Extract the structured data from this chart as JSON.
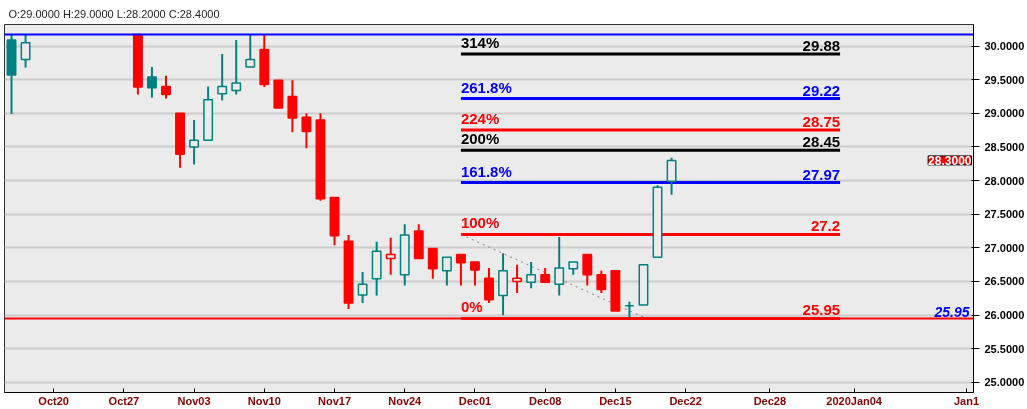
{
  "chart_data": {
    "type": "candlestick",
    "annotations": [
      "O:29.0000  H:29.0000  L:28.2000  C:28.4000",
      "28.3000"
    ],
    "categories": [
      null,
      null,
      null,
      "Oct20",
      null,
      null,
      null,
      null,
      "Oct27",
      null,
      null,
      null,
      null,
      "Nov03",
      null,
      null,
      null,
      null,
      "Nov10",
      null,
      null,
      null,
      null,
      "Nov17",
      null,
      null,
      null,
      null,
      "Nov24",
      null,
      null,
      null,
      null,
      "Dec01",
      null,
      null,
      null,
      null,
      "Dec08",
      null,
      null,
      null,
      null,
      "Dec15",
      null,
      null,
      null,
      null,
      "Dec22",
      null,
      null,
      null,
      null,
      null,
      "Dec28",
      null,
      null,
      null,
      null,
      null,
      "2020Jan04",
      null,
      null,
      null,
      null,
      null,
      null,
      null,
      "Jan1"
    ],
    "ohlc": [
      [
        30.09,
        30.17,
        28.99,
        29.57
      ],
      [
        29.8,
        30.17,
        29.68,
        30.05
      ],
      null,
      null,
      null,
      null,
      null,
      null,
      null,
      [
        30.17,
        30.17,
        29.28,
        29.39
      ],
      [
        29.54,
        29.69,
        29.23,
        29.38
      ],
      [
        29.4,
        29.56,
        29.22,
        29.28
      ],
      [
        29.0,
        29.0,
        28.19,
        28.39
      ],
      [
        28.5,
        28.9,
        28.24,
        28.6
      ],
      [
        28.6,
        29.4,
        28.6,
        29.2
      ],
      [
        29.29,
        29.88,
        29.19,
        29.4
      ],
      [
        29.34,
        30.09,
        29.28,
        29.45
      ],
      [
        29.69,
        30.17,
        29.69,
        29.8
      ],
      [
        29.95,
        30.17,
        29.39,
        29.43
      ],
      [
        29.49,
        29.49,
        29.08,
        29.08
      ],
      [
        29.25,
        29.49,
        28.72,
        28.93
      ],
      [
        28.94,
        29.0,
        28.48,
        28.73
      ],
      [
        28.9,
        29.0,
        27.7,
        27.73
      ],
      [
        27.75,
        27.75,
        27.04,
        27.18
      ],
      [
        27.1,
        27.19,
        26.09,
        26.18
      ],
      [
        26.3,
        26.64,
        26.18,
        26.46
      ],
      [
        26.54,
        27.09,
        26.29,
        26.95
      ],
      [
        26.84,
        27.15,
        26.6,
        26.9
      ],
      [
        26.6,
        27.35,
        26.44,
        27.19
      ],
      [
        27.25,
        27.35,
        26.84,
        26.84
      ],
      [
        26.99,
        26.99,
        26.54,
        26.69
      ],
      [
        26.66,
        26.86,
        26.44,
        26.86
      ],
      [
        26.9,
        26.9,
        26.44,
        26.78
      ],
      [
        26.79,
        26.79,
        26.44,
        26.67
      ],
      [
        26.55,
        26.7,
        26.18,
        26.23
      ],
      [
        26.29,
        26.92,
        26.0,
        26.66
      ],
      [
        26.5,
        26.75,
        26.33,
        26.55
      ],
      [
        26.49,
        26.79,
        26.4,
        26.6
      ],
      [
        26.6,
        26.7,
        26.49,
        26.49
      ],
      [
        26.46,
        27.16,
        26.29,
        26.7
      ],
      [
        26.69,
        26.79,
        26.6,
        26.79
      ],
      [
        26.9,
        26.9,
        26.44,
        26.6
      ],
      [
        26.6,
        26.66,
        26.33,
        26.38
      ],
      [
        26.66,
        26.66,
        26.06,
        26.06
      ],
      [
        26.14,
        26.2,
        25.97,
        26.14
      ],
      [
        26.15,
        26.75,
        26.15,
        26.75
      ],
      [
        26.86,
        27.93,
        26.86,
        27.9
      ],
      [
        27.99,
        28.34,
        27.79,
        28.3
      ],
      null,
      null,
      null,
      null,
      null,
      null,
      null,
      null,
      null,
      null,
      null,
      null,
      null,
      null,
      null,
      null,
      null,
      null,
      null,
      null,
      null
    ],
    "colors": [
      "#008080",
      "#008080",
      null,
      null,
      null,
      null,
      null,
      null,
      null,
      "#ff0000",
      "#008080",
      "#ff0000",
      "#ff0000",
      "#008080",
      "#008080",
      "#008080",
      "#008080",
      "#008080",
      "#ff0000",
      "#ff0000",
      "#ff0000",
      "#ff0000",
      "#ff0000",
      "#ff0000",
      "#ff0000",
      "#008080",
      "#008080",
      "#ff0000",
      "#008080",
      "#ff0000",
      "#ff0000",
      "#008080",
      "#ff0000",
      "#ff0000",
      "#ff0000",
      "#008080",
      "#ff0000",
      "#008080",
      "#ff0000",
      "#008080",
      "#008080",
      "#ff0000",
      "#ff0000",
      "#ff0000",
      "#008080",
      "#008080",
      "#008080",
      "#008080",
      null,
      null,
      null,
      null,
      null,
      null,
      null,
      null,
      null,
      null,
      null,
      null,
      null,
      null,
      null,
      null,
      null,
      null,
      null,
      null,
      null
    ],
    "ylim": [
      24.85,
      30.32
    ],
    "yticks": [
      {
        "value": 25,
        "label": "25.0000"
      },
      {
        "value": 25.5,
        "label": "25.5000"
      },
      {
        "value": 26,
        "label": "26.0000"
      },
      {
        "value": 26.5,
        "label": "26.5000"
      },
      {
        "value": 27,
        "label": "27.0000"
      },
      {
        "value": 27.5,
        "label": "27.5000"
      },
      {
        "value": 28,
        "label": "28.0000"
      },
      {
        "value": 28.5,
        "label": "28.5000"
      },
      {
        "value": 29,
        "label": "29.0000"
      },
      {
        "value": 29.5,
        "label": "29.5000"
      },
      {
        "value": 30,
        "label": "30.0000"
      }
    ],
    "grid": "y",
    "series": [
      {
        "type": "line",
        "name": "314%",
        "color": "#000000",
        "values": [
          null,
          null,
          null,
          null,
          null,
          null,
          null,
          null,
          null,
          null,
          null,
          null,
          null,
          null,
          null,
          null,
          null,
          null,
          null,
          null,
          null,
          null,
          null,
          null,
          null,
          null,
          null,
          null,
          null,
          null,
          null,
          null,
          29.88,
          null,
          null,
          null,
          null,
          null,
          null,
          null,
          null,
          null,
          null,
          null,
          null,
          null,
          null,
          null,
          null,
          null,
          null,
          null,
          null,
          null,
          null,
          null,
          null,
          null,
          null,
          29.88,
          null,
          null,
          null,
          null,
          null,
          null,
          null,
          null,
          null
        ],
        "value_labels": [
          null,
          null,
          null,
          null,
          null,
          null,
          null,
          null,
          null,
          null,
          null,
          null,
          null,
          null,
          null,
          null,
          null,
          null,
          null,
          null,
          null,
          null,
          null,
          null,
          null,
          null,
          null,
          null,
          null,
          null,
          null,
          null,
          null,
          null,
          null,
          null,
          null,
          null,
          null,
          null,
          null,
          null,
          null,
          null,
          null,
          null,
          null,
          null,
          null,
          null,
          null,
          null,
          null,
          null,
          null,
          null,
          null,
          null,
          null,
          "29.88",
          null,
          null,
          null,
          null,
          null,
          null,
          null,
          null,
          null
        ]
      },
      {
        "type": "line",
        "name": "261.8%",
        "color": "#0000ff",
        "values": [
          null,
          null,
          null,
          null,
          null,
          null,
          null,
          null,
          null,
          null,
          null,
          null,
          null,
          null,
          null,
          null,
          null,
          null,
          null,
          null,
          null,
          null,
          null,
          null,
          null,
          null,
          null,
          null,
          null,
          null,
          null,
          null,
          29.22,
          null,
          null,
          null,
          null,
          null,
          null,
          null,
          null,
          null,
          null,
          null,
          null,
          null,
          null,
          null,
          null,
          null,
          null,
          null,
          null,
          null,
          null,
          null,
          null,
          null,
          null,
          29.22,
          null,
          null,
          null,
          null,
          null,
          null,
          null,
          null,
          null
        ],
        "value_labels": [
          null,
          null,
          null,
          null,
          null,
          null,
          null,
          null,
          null,
          null,
          null,
          null,
          null,
          null,
          null,
          null,
          null,
          null,
          null,
          null,
          null,
          null,
          null,
          null,
          null,
          null,
          null,
          null,
          null,
          null,
          null,
          null,
          null,
          null,
          null,
          null,
          null,
          null,
          null,
          null,
          null,
          null,
          null,
          null,
          null,
          null,
          null,
          null,
          null,
          null,
          null,
          null,
          null,
          null,
          null,
          null,
          null,
          null,
          null,
          "29.22",
          null,
          null,
          null,
          null,
          null,
          null,
          null,
          null,
          null
        ]
      },
      {
        "type": "line",
        "name": "224%",
        "color": "#ff0000",
        "values": [
          null,
          null,
          null,
          null,
          null,
          null,
          null,
          null,
          null,
          null,
          null,
          null,
          null,
          null,
          null,
          null,
          null,
          null,
          null,
          null,
          null,
          null,
          null,
          null,
          null,
          null,
          null,
          null,
          null,
          null,
          null,
          null,
          28.75,
          null,
          null,
          null,
          null,
          null,
          null,
          null,
          null,
          null,
          null,
          null,
          null,
          null,
          null,
          null,
          null,
          null,
          null,
          null,
          null,
          null,
          null,
          null,
          null,
          null,
          null,
          28.75,
          null,
          null,
          null,
          null,
          null,
          null,
          null,
          null,
          null
        ],
        "value_labels": [
          null,
          null,
          null,
          null,
          null,
          null,
          null,
          null,
          null,
          null,
          null,
          null,
          null,
          null,
          null,
          null,
          null,
          null,
          null,
          null,
          null,
          null,
          null,
          null,
          null,
          null,
          null,
          null,
          null,
          null,
          null,
          null,
          null,
          null,
          null,
          null,
          null,
          null,
          null,
          null,
          null,
          null,
          null,
          null,
          null,
          null,
          null,
          null,
          null,
          null,
          null,
          null,
          null,
          null,
          null,
          null,
          null,
          null,
          null,
          "28.75",
          null,
          null,
          null,
          null,
          null,
          null,
          null,
          null,
          null
        ]
      },
      {
        "type": "line",
        "name": "200%",
        "color": "#000000",
        "values": [
          null,
          null,
          null,
          null,
          null,
          null,
          null,
          null,
          null,
          null,
          null,
          null,
          null,
          null,
          null,
          null,
          null,
          null,
          null,
          null,
          null,
          null,
          null,
          null,
          null,
          null,
          null,
          null,
          null,
          null,
          null,
          null,
          28.45,
          null,
          null,
          null,
          null,
          null,
          null,
          null,
          null,
          null,
          null,
          null,
          null,
          null,
          null,
          null,
          null,
          null,
          null,
          null,
          null,
          null,
          null,
          null,
          null,
          null,
          null,
          28.45,
          null,
          null,
          null,
          null,
          null,
          null,
          null,
          null,
          null
        ],
        "value_labels": [
          null,
          null,
          null,
          null,
          null,
          null,
          null,
          null,
          null,
          null,
          null,
          null,
          null,
          null,
          null,
          null,
          null,
          null,
          null,
          null,
          null,
          null,
          null,
          null,
          null,
          null,
          null,
          null,
          null,
          null,
          null,
          null,
          null,
          null,
          null,
          null,
          null,
          null,
          null,
          null,
          null,
          null,
          null,
          null,
          null,
          null,
          null,
          null,
          null,
          null,
          null,
          null,
          null,
          null,
          null,
          null,
          null,
          null,
          null,
          "28.45",
          null,
          null,
          null,
          null,
          null,
          null,
          null,
          null,
          null
        ]
      },
      {
        "type": "line",
        "name": "161.8%",
        "color": "#0000ff",
        "values": [
          null,
          null,
          null,
          null,
          null,
          null,
          null,
          null,
          null,
          null,
          null,
          null,
          null,
          null,
          null,
          null,
          null,
          null,
          null,
          null,
          null,
          null,
          null,
          null,
          null,
          null,
          null,
          null,
          null,
          null,
          null,
          null,
          27.97,
          null,
          null,
          null,
          null,
          null,
          null,
          null,
          null,
          null,
          null,
          null,
          null,
          null,
          null,
          null,
          null,
          null,
          null,
          null,
          null,
          null,
          null,
          null,
          null,
          null,
          null,
          27.97,
          null,
          null,
          null,
          null,
          null,
          null,
          null,
          null,
          null
        ],
        "value_labels": [
          null,
          null,
          null,
          null,
          null,
          null,
          null,
          null,
          null,
          null,
          null,
          null,
          null,
          null,
          null,
          null,
          null,
          null,
          null,
          null,
          null,
          null,
          null,
          null,
          null,
          null,
          null,
          null,
          null,
          null,
          null,
          null,
          null,
          null,
          null,
          null,
          null,
          null,
          null,
          null,
          null,
          null,
          null,
          null,
          null,
          null,
          null,
          null,
          null,
          null,
          null,
          null,
          null,
          null,
          null,
          null,
          null,
          null,
          null,
          "27.97",
          null,
          null,
          null,
          null,
          null,
          null,
          null,
          null,
          null
        ]
      },
      {
        "type": "line",
        "name": "100%",
        "color": "#ff0000",
        "values": [
          null,
          null,
          null,
          null,
          null,
          null,
          null,
          null,
          null,
          null,
          null,
          null,
          null,
          null,
          null,
          null,
          null,
          null,
          null,
          null,
          null,
          null,
          null,
          null,
          null,
          null,
          null,
          null,
          null,
          null,
          null,
          null,
          27.2,
          null,
          null,
          null,
          null,
          null,
          null,
          null,
          null,
          null,
          null,
          null,
          null,
          null,
          null,
          null,
          null,
          null,
          null,
          null,
          null,
          null,
          null,
          null,
          null,
          null,
          null,
          27.2,
          null,
          null,
          null,
          null,
          null,
          null,
          null,
          null,
          null
        ],
        "value_labels": [
          null,
          null,
          null,
          null,
          null,
          null,
          null,
          null,
          null,
          null,
          null,
          null,
          null,
          null,
          null,
          null,
          null,
          null,
          null,
          null,
          null,
          null,
          null,
          null,
          null,
          null,
          null,
          null,
          null,
          null,
          null,
          null,
          null,
          null,
          null,
          null,
          null,
          null,
          null,
          null,
          null,
          null,
          null,
          null,
          null,
          null,
          null,
          null,
          null,
          null,
          null,
          null,
          null,
          null,
          null,
          null,
          null,
          null,
          null,
          "27.2",
          null,
          null,
          null,
          null,
          null,
          null,
          null,
          null,
          null
        ]
      },
      {
        "type": "line",
        "name": "0%",
        "color": "#ff0000",
        "values": [
          null,
          null,
          null,
          null,
          null,
          null,
          null,
          null,
          null,
          null,
          null,
          null,
          null,
          null,
          null,
          null,
          null,
          null,
          null,
          null,
          null,
          null,
          null,
          null,
          null,
          null,
          null,
          null,
          null,
          null,
          null,
          null,
          25.95,
          null,
          null,
          null,
          null,
          null,
          null,
          null,
          null,
          null,
          null,
          null,
          null,
          null,
          null,
          null,
          null,
          null,
          null,
          null,
          null,
          null,
          null,
          null,
          null,
          null,
          null,
          25.95,
          null,
          null,
          null,
          null,
          null,
          null,
          null,
          null,
          null
        ],
        "value_labels": [
          null,
          null,
          null,
          null,
          null,
          null,
          null,
          null,
          null,
          null,
          null,
          null,
          null,
          null,
          null,
          null,
          null,
          null,
          null,
          null,
          null,
          null,
          null,
          null,
          null,
          null,
          null,
          null,
          null,
          null,
          null,
          null,
          null,
          null,
          null,
          null,
          null,
          null,
          null,
          null,
          null,
          null,
          null,
          null,
          null,
          null,
          null,
          null,
          null,
          null,
          null,
          null,
          null,
          null,
          null,
          null,
          null,
          null,
          null,
          "25.95",
          null,
          null,
          null,
          null,
          null,
          null,
          null,
          null,
          null
        ]
      },
      {
        "type": "line",
        "color": "#808080",
        "line_style": "dotted",
        "values": [
          null,
          null,
          null,
          null,
          null,
          null,
          null,
          null,
          null,
          null,
          null,
          null,
          null,
          null,
          null,
          null,
          null,
          null,
          null,
          null,
          null,
          null,
          null,
          null,
          null,
          null,
          null,
          null,
          null,
          null,
          null,
          null,
          27.2,
          null,
          null,
          null,
          null,
          null,
          null,
          null,
          null,
          null,
          null,
          null,
          null,
          25.97,
          null,
          null,
          null,
          null,
          null,
          null,
          null,
          null,
          null,
          null,
          null,
          null,
          null,
          null,
          null,
          null,
          null,
          null,
          null,
          null,
          null,
          null,
          null
        ]
      }
    ],
    "ref_lines": [
      {
        "axis": "y",
        "value": 30.17,
        "color": "#0000ff"
      },
      {
        "axis": "y",
        "value": 25.95,
        "label": "25.95",
        "color": "#ff0000"
      }
    ]
  }
}
